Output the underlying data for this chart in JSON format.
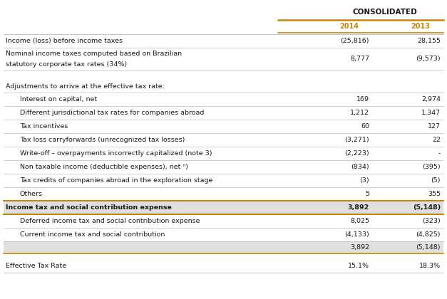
{
  "title": "CONSOLIDATED",
  "col_headers": [
    "2014",
    "2013"
  ],
  "rows": [
    {
      "label": "Income (loss) before income taxes",
      "val2014": "(25,816)",
      "val2013": "28,155",
      "indent": 0,
      "bold": false,
      "shaded": false,
      "type": "normal"
    },
    {
      "label": "Nominal income taxes computed based on Brazilian\nstatutory corporate tax rates (34%)",
      "val2014": "8,777",
      "val2013": "(9,573)",
      "indent": 0,
      "bold": false,
      "shaded": false,
      "type": "multiline"
    },
    {
      "label": "",
      "val2014": "",
      "val2013": "",
      "indent": 0,
      "bold": false,
      "shaded": false,
      "type": "spacer"
    },
    {
      "label": "",
      "val2014": "",
      "val2013": "",
      "indent": 0,
      "bold": false,
      "shaded": false,
      "type": "spacer2"
    },
    {
      "label": "Adjustments to arrive at the effective tax rate:",
      "val2014": "",
      "val2013": "",
      "indent": 0,
      "bold": false,
      "shaded": false,
      "type": "section"
    },
    {
      "label": "Interest on capital, net",
      "val2014": "169",
      "val2013": "2,974",
      "indent": 1,
      "bold": false,
      "shaded": false,
      "type": "normal"
    },
    {
      "label": "Different jurisdictional tax rates for companies abroad",
      "val2014": "1,212",
      "val2013": "1,347",
      "indent": 1,
      "bold": false,
      "shaded": false,
      "type": "normal"
    },
    {
      "label": "Tax incentives",
      "val2014": "60",
      "val2013": "127",
      "indent": 1,
      "bold": false,
      "shaded": false,
      "type": "normal"
    },
    {
      "label": "Tax loss carryforwards (unrecognized tax losses)",
      "val2014": "(3,271)",
      "val2013": "22",
      "indent": 1,
      "bold": false,
      "shaded": false,
      "type": "normal"
    },
    {
      "label": "Write-off – overpayments incorrectly capitalized (note 3)",
      "val2014": "(2,223)",
      "val2013": "-",
      "indent": 1,
      "bold": false,
      "shaded": false,
      "type": "normal"
    },
    {
      "label": "Non taxable income (deductible expenses), net ⁿ)",
      "val2014": "(834)",
      "val2013": "(395)",
      "indent": 1,
      "bold": false,
      "shaded": false,
      "type": "normal"
    },
    {
      "label": "Tax credits of companies abroad in the exploration stage",
      "val2014": "(3)",
      "val2013": "(5)",
      "indent": 1,
      "bold": false,
      "shaded": false,
      "type": "normal"
    },
    {
      "label": "Others",
      "val2014": "5",
      "val2013": "355",
      "indent": 1,
      "bold": false,
      "shaded": false,
      "type": "normal"
    },
    {
      "label": "Income tax and social contribution expense",
      "val2014": "3,892",
      "val2013": "(5,148)",
      "indent": 0,
      "bold": true,
      "shaded": true,
      "type": "total"
    },
    {
      "label": "Deferred income tax and social contribution expense",
      "val2014": "8,025",
      "val2013": "(323)",
      "indent": 1,
      "bold": false,
      "shaded": false,
      "type": "normal"
    },
    {
      "label": "Current income tax and social contribution",
      "val2014": "(4,133)",
      "val2013": "(4,825)",
      "indent": 1,
      "bold": false,
      "shaded": false,
      "type": "normal"
    },
    {
      "label": "",
      "val2014": "3,892",
      "val2013": "(5,148)",
      "indent": 0,
      "bold": false,
      "shaded": true,
      "type": "subtotal"
    },
    {
      "label": "",
      "val2014": "",
      "val2013": "",
      "indent": 0,
      "bold": false,
      "shaded": false,
      "type": "spacer"
    },
    {
      "label": "Effective Tax Rate",
      "val2014": "15.1%",
      "val2013": "18.3%",
      "indent": 0,
      "bold": false,
      "shaded": false,
      "type": "normal"
    }
  ],
  "colors": {
    "header_text": "#c8860a",
    "orange_line": "#c8860a",
    "shaded_row": "#e0e0e0",
    "text": "#1a1a1a",
    "background": "#ffffff",
    "grid_line": "#bbbbbb"
  }
}
